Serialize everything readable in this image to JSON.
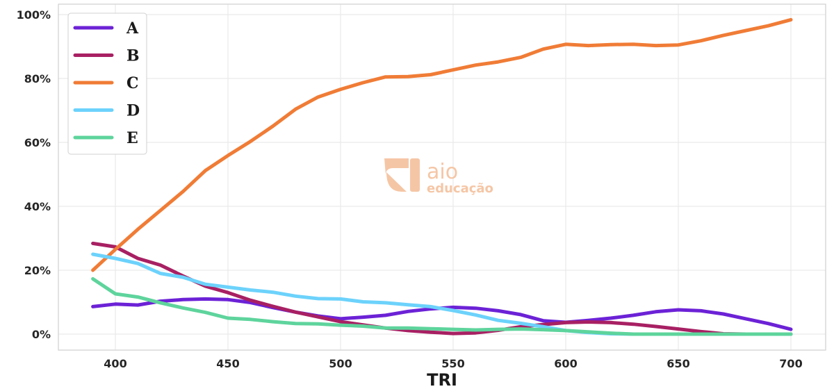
{
  "chart_data": {
    "type": "line",
    "xlabel": "TRI",
    "ylabel": "",
    "xlim": [
      375,
      1020
    ],
    "ylim": [
      -5,
      102
    ],
    "x_ticks": [
      "400",
      "450",
      "500",
      "550",
      "600",
      "650",
      "700"
    ],
    "y_ticks": [
      "0%",
      "20%",
      "40%",
      "60%",
      "80%",
      "100%"
    ],
    "x_tick_values": [
      400,
      450,
      500,
      550,
      600,
      650,
      700
    ],
    "y_tick_values": [
      0,
      20,
      40,
      60,
      80,
      100
    ],
    "grid": true,
    "legend_position": "top-left",
    "x": [
      390,
      400,
      410,
      420,
      430,
      440,
      450,
      460,
      470,
      480,
      490,
      500,
      510,
      520,
      530,
      540,
      550,
      560,
      570,
      580,
      590,
      600,
      610,
      620,
      630,
      640,
      650,
      660,
      670,
      680,
      690,
      700
    ],
    "series": [
      {
        "name": "A",
        "color": "#6c22d6",
        "values": [
          8.6,
          9.4,
          9.1,
          10.3,
          10.8,
          11.0,
          10.8,
          9.9,
          8.3,
          6.9,
          5.7,
          4.8,
          5.3,
          5.9,
          7.1,
          7.9,
          8.4,
          8.1,
          7.3,
          6.1,
          4.2,
          3.7,
          4.3,
          5.0,
          5.9,
          7.0,
          7.6,
          7.3,
          6.3,
          4.8,
          3.3,
          1.5
        ]
      },
      {
        "name": "B",
        "color": "#a82063",
        "values": [
          28.4,
          27.3,
          23.7,
          21.6,
          18.2,
          15.0,
          13.0,
          10.6,
          8.7,
          6.9,
          5.4,
          3.9,
          2.9,
          1.9,
          1.1,
          0.6,
          0.2,
          0.4,
          1.2,
          2.3,
          3.0,
          3.6,
          3.8,
          3.6,
          3.1,
          2.4,
          1.6,
          0.8,
          0.1,
          0.0,
          0.0,
          0.0
        ]
      },
      {
        "name": "C",
        "color": "#f07c36",
        "values": [
          20.0,
          26.5,
          32.8,
          38.7,
          44.6,
          51.2,
          55.9,
          60.3,
          65.1,
          70.4,
          74.2,
          76.6,
          78.7,
          80.5,
          80.6,
          81.2,
          82.7,
          84.2,
          85.2,
          86.6,
          89.2,
          90.7,
          90.3,
          90.6,
          90.7,
          90.3,
          90.5,
          91.8,
          93.5,
          95.0,
          96.5,
          98.4
        ]
      },
      {
        "name": "D",
        "color": "#6cd2fb",
        "values": [
          25.0,
          23.7,
          22.1,
          19.0,
          17.8,
          15.6,
          14.7,
          13.8,
          13.1,
          11.9,
          11.1,
          11.0,
          10.1,
          9.8,
          9.2,
          8.6,
          7.4,
          6.0,
          4.3,
          3.4,
          2.3,
          1.1,
          0.5,
          0.1,
          0.0,
          0.0,
          0.0,
          0.0,
          0.0,
          0.0,
          0.0,
          0.0
        ]
      },
      {
        "name": "E",
        "color": "#5ed49c",
        "values": [
          17.3,
          12.6,
          11.6,
          9.8,
          8.2,
          6.8,
          5.0,
          4.6,
          3.9,
          3.3,
          3.2,
          2.8,
          2.5,
          1.9,
          1.9,
          1.7,
          1.5,
          1.3,
          1.5,
          1.6,
          1.4,
          1.1,
          0.7,
          0.3,
          0.0,
          0.0,
          0.0,
          0.0,
          0.0,
          0.0,
          0.0,
          0.0
        ]
      }
    ]
  },
  "watermark": {
    "brand": "aio",
    "sub": "educação",
    "color": "#f5c6a5"
  }
}
